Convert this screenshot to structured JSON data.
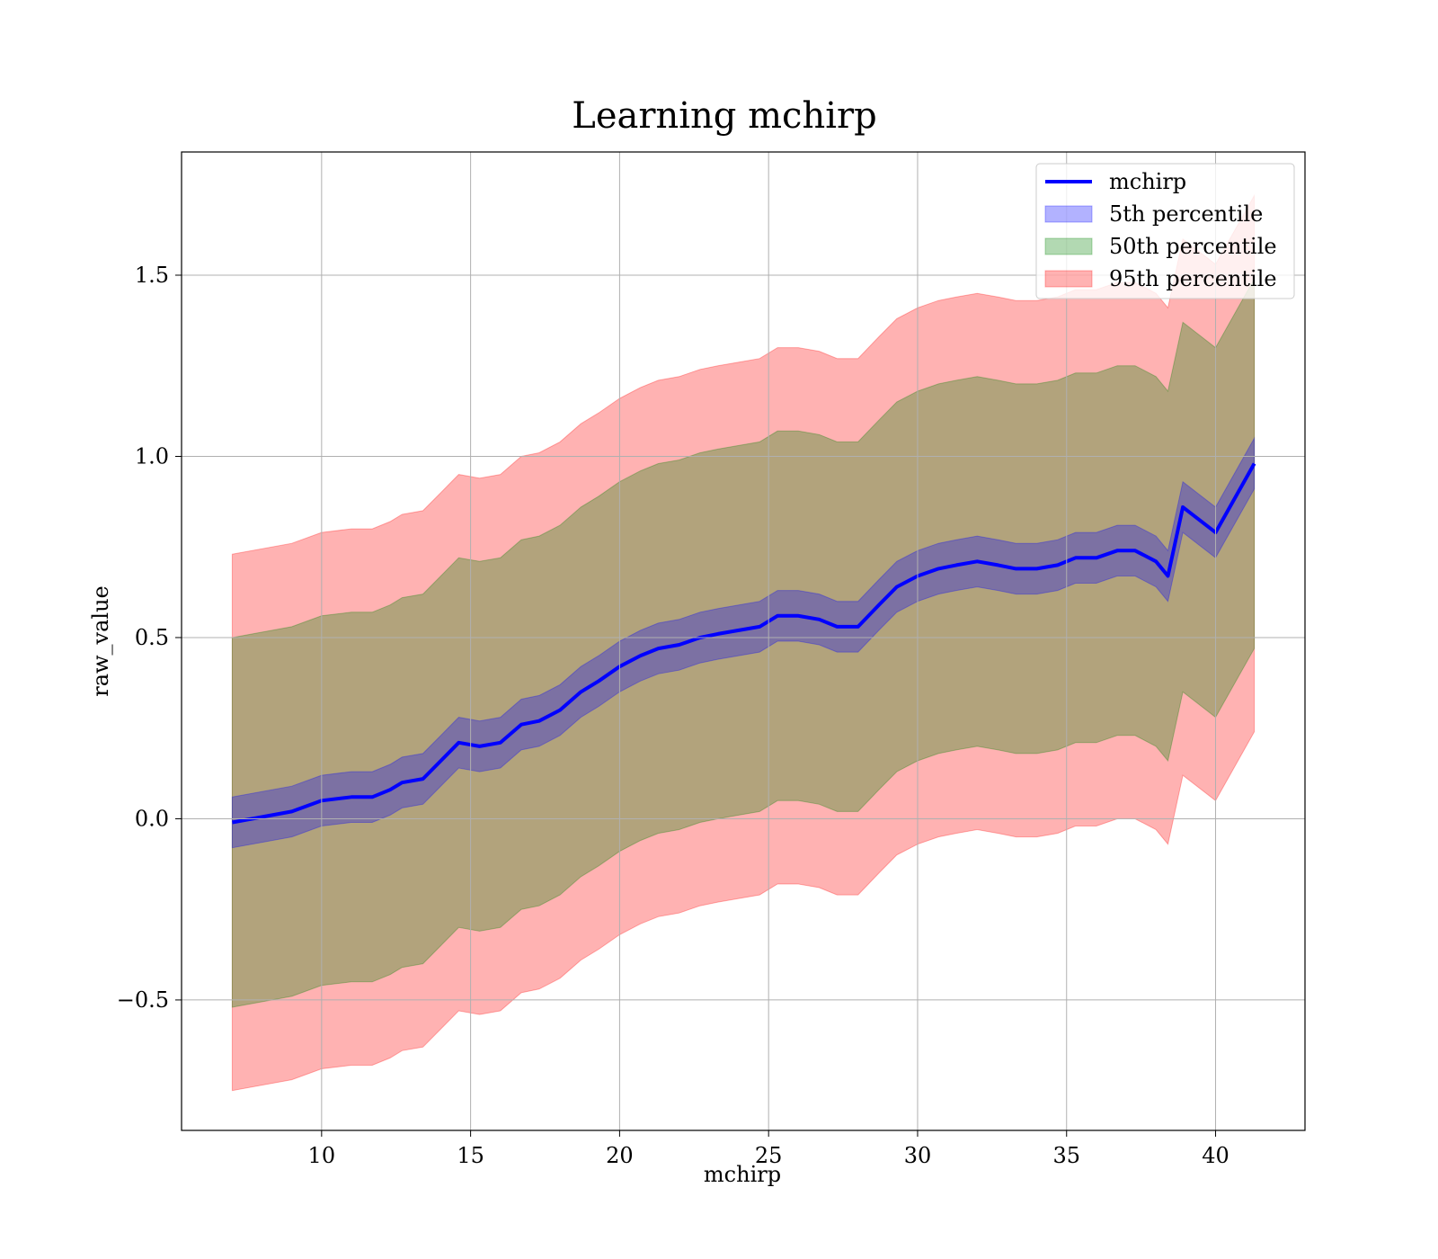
{
  "chart_data": {
    "type": "area",
    "title": "Learning mchirp",
    "xlabel": "mchirp",
    "ylabel": "raw_value",
    "xlim": [
      5.3,
      43.0
    ],
    "ylim": [
      -0.86,
      1.84
    ],
    "xticks": [
      10,
      15,
      20,
      25,
      30,
      35,
      40
    ],
    "xtick_labels": [
      "10",
      "15",
      "20",
      "25",
      "30",
      "35",
      "40"
    ],
    "yticks": [
      -0.5,
      0.0,
      0.5,
      1.0,
      1.5
    ],
    "ytick_labels": [
      "−0.5",
      "0.0",
      "0.5",
      "1.0",
      "1.5"
    ],
    "grid": true,
    "legend_position": "top-right",
    "x": [
      7.0,
      9.0,
      10.0,
      11.0,
      11.7,
      12.3,
      12.7,
      13.4,
      14.0,
      14.6,
      15.3,
      16.0,
      16.7,
      17.3,
      18.0,
      18.7,
      19.3,
      20.0,
      20.7,
      21.3,
      22.0,
      22.7,
      23.3,
      24.0,
      24.7,
      25.3,
      26.0,
      26.7,
      27.3,
      28.0,
      28.7,
      29.3,
      30.0,
      30.7,
      31.3,
      32.0,
      32.7,
      33.3,
      34.0,
      34.7,
      35.3,
      36.0,
      36.7,
      37.3,
      38.0,
      38.4,
      38.9,
      40.0,
      41.3
    ],
    "series": [
      {
        "name": "mchirp",
        "kind": "line",
        "color": "#0000ff",
        "values": [
          -0.01,
          0.02,
          0.05,
          0.06,
          0.06,
          0.08,
          0.1,
          0.11,
          0.16,
          0.21,
          0.2,
          0.21,
          0.26,
          0.27,
          0.3,
          0.35,
          0.38,
          0.42,
          0.45,
          0.47,
          0.48,
          0.5,
          0.51,
          0.52,
          0.53,
          0.56,
          0.56,
          0.55,
          0.53,
          0.53,
          0.59,
          0.64,
          0.67,
          0.69,
          0.7,
          0.71,
          0.7,
          0.69,
          0.69,
          0.7,
          0.72,
          0.72,
          0.74,
          0.74,
          0.71,
          0.67,
          0.86,
          0.79,
          0.98
        ]
      },
      {
        "name": "5th percentile",
        "kind": "band",
        "color": "#0000ff",
        "half_width": [
          0.07,
          0.07,
          0.07,
          0.07,
          0.07,
          0.07,
          0.07,
          0.07,
          0.07,
          0.07,
          0.07,
          0.07,
          0.07,
          0.07,
          0.07,
          0.07,
          0.07,
          0.07,
          0.07,
          0.07,
          0.07,
          0.07,
          0.07,
          0.07,
          0.07,
          0.07,
          0.07,
          0.07,
          0.07,
          0.07,
          0.07,
          0.07,
          0.07,
          0.07,
          0.07,
          0.07,
          0.07,
          0.07,
          0.07,
          0.07,
          0.07,
          0.07,
          0.07,
          0.07,
          0.07,
          0.07,
          0.07,
          0.07,
          0.07
        ]
      },
      {
        "name": "50th percentile",
        "kind": "band",
        "color": "#008000",
        "half_width": [
          0.51,
          0.51,
          0.51,
          0.51,
          0.51,
          0.51,
          0.51,
          0.51,
          0.51,
          0.51,
          0.51,
          0.51,
          0.51,
          0.51,
          0.51,
          0.51,
          0.51,
          0.51,
          0.51,
          0.51,
          0.51,
          0.51,
          0.51,
          0.51,
          0.51,
          0.51,
          0.51,
          0.51,
          0.51,
          0.51,
          0.51,
          0.51,
          0.51,
          0.51,
          0.51,
          0.51,
          0.51,
          0.51,
          0.51,
          0.51,
          0.51,
          0.51,
          0.51,
          0.51,
          0.51,
          0.51,
          0.51,
          0.51,
          0.51
        ]
      },
      {
        "name": "95th percentile",
        "kind": "band",
        "color": "#ff0000",
        "half_width": [
          0.74,
          0.74,
          0.74,
          0.74,
          0.74,
          0.74,
          0.74,
          0.74,
          0.74,
          0.74,
          0.74,
          0.74,
          0.74,
          0.74,
          0.74,
          0.74,
          0.74,
          0.74,
          0.74,
          0.74,
          0.74,
          0.74,
          0.74,
          0.74,
          0.74,
          0.74,
          0.74,
          0.74,
          0.74,
          0.74,
          0.74,
          0.74,
          0.74,
          0.74,
          0.74,
          0.74,
          0.74,
          0.74,
          0.74,
          0.74,
          0.74,
          0.74,
          0.74,
          0.74,
          0.74,
          0.74,
          0.74,
          0.74,
          0.74
        ]
      }
    ]
  }
}
